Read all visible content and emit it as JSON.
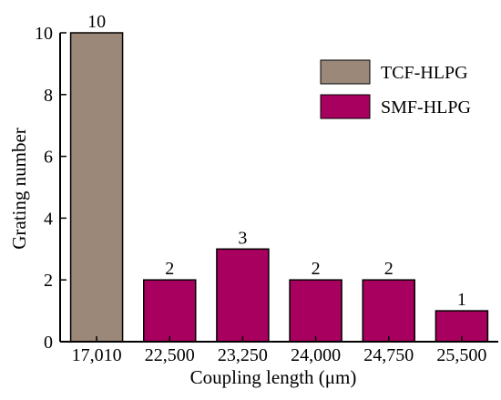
{
  "chart_data": {
    "type": "bar",
    "categories": [
      "17,010",
      "22,500",
      "23,250",
      "24,000",
      "24,750",
      "25,500"
    ],
    "series": [
      {
        "name": "TCF-HLPG",
        "values": [
          10,
          null,
          null,
          null,
          null,
          null
        ],
        "color": "#9b8878"
      },
      {
        "name": "SMF-HLPG",
        "values": [
          null,
          2,
          3,
          2,
          2,
          1
        ],
        "color": "#a8005e"
      }
    ],
    "data_labels": [
      "10",
      "2",
      "3",
      "2",
      "2",
      "1"
    ],
    "xlabel": "Coupling length (μm)",
    "ylabel": "Grating number",
    "ylim": [
      0,
      10
    ],
    "yticks": [
      "0",
      "2",
      "4",
      "6",
      "8",
      "10"
    ],
    "grid": false,
    "legend_position": "top-right"
  }
}
